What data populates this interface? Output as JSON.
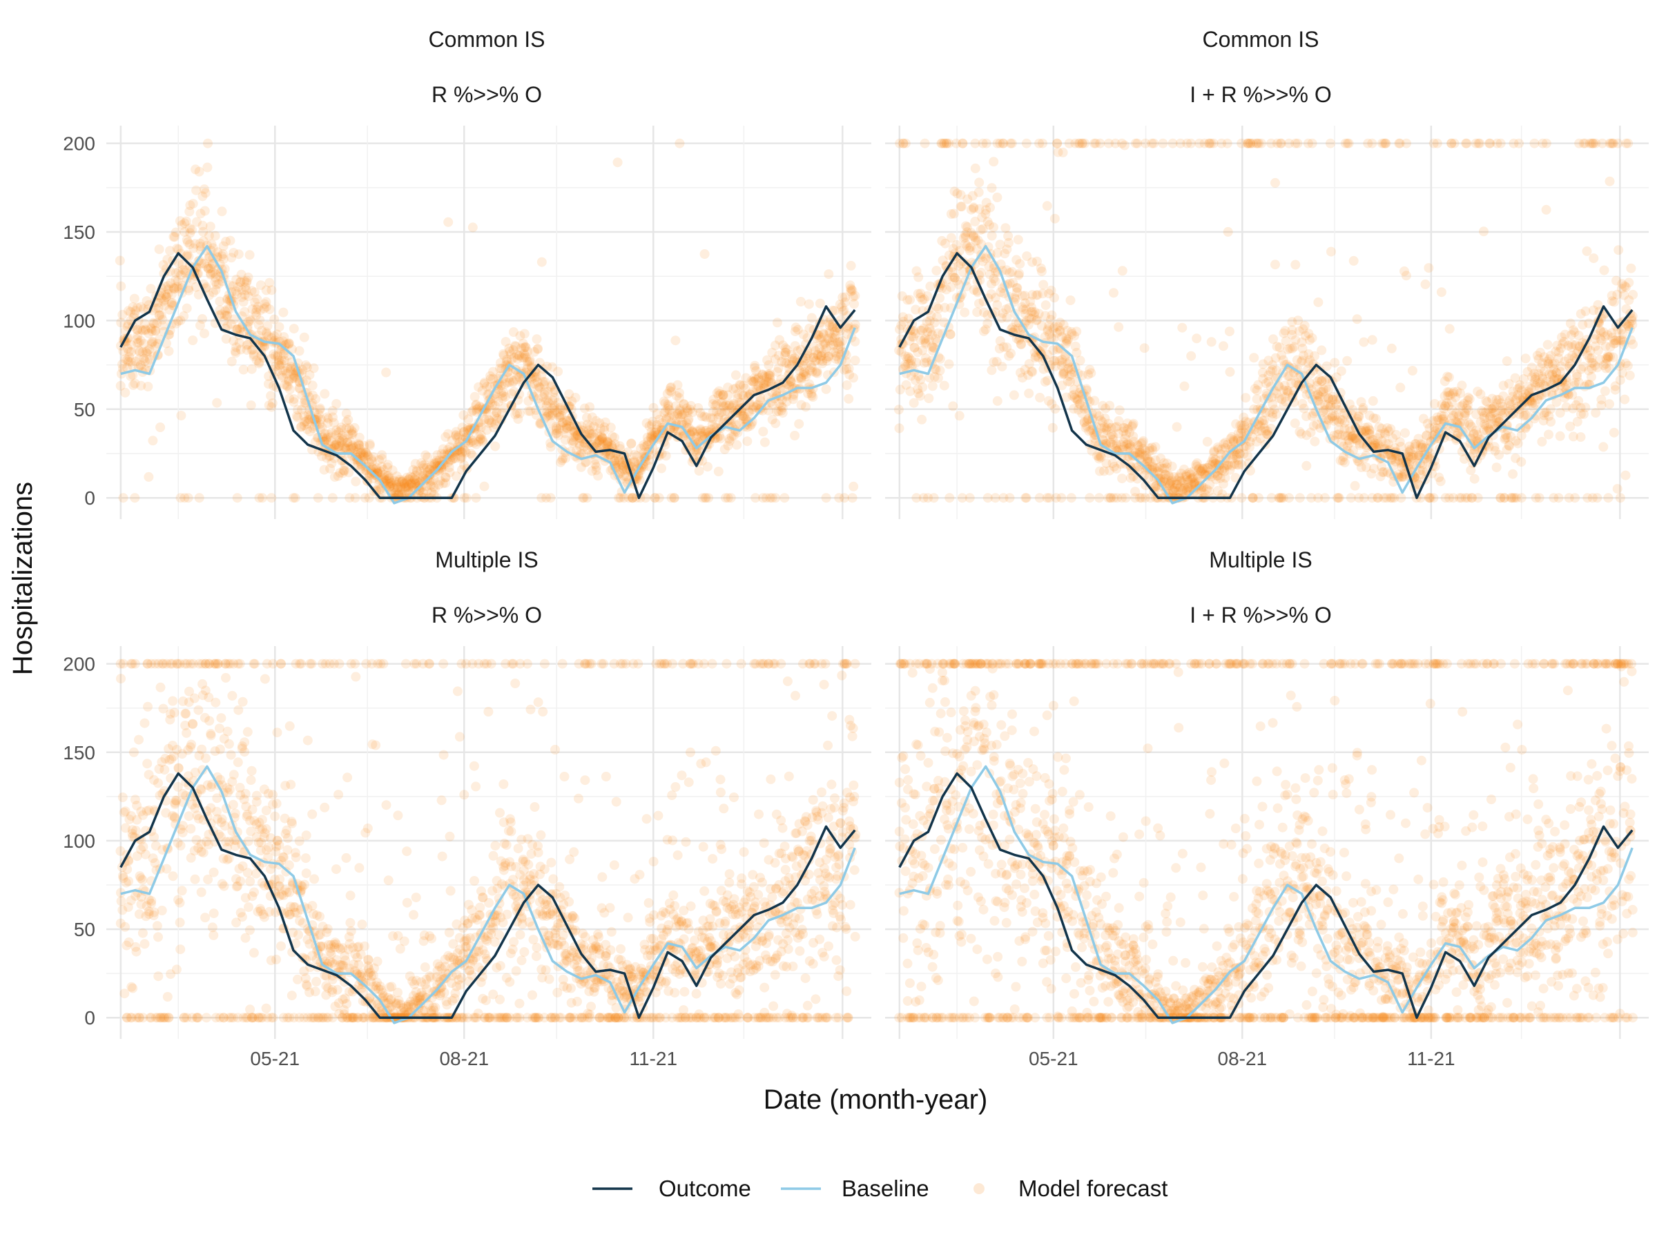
{
  "chart_data": {
    "type": "line",
    "ylabel": "Hospitalizations",
    "xlabel": "Date (month-year)",
    "x_tick_labels": [
      "05-21",
      "08-21",
      "11-21"
    ],
    "y_ticks": [
      0,
      50,
      100,
      150,
      200
    ],
    "ylim": [
      -12,
      210
    ],
    "xlim": [
      "2021-02-08",
      "2022-02-15"
    ],
    "grid": true,
    "legend_position": "bottom",
    "legend": [
      {
        "label": "Outcome",
        "kind": "line",
        "color": "#12344a"
      },
      {
        "label": "Baseline",
        "kind": "line",
        "color": "#8ecae6"
      },
      {
        "label": "Model forecast",
        "kind": "point",
        "color": "#f58518"
      }
    ],
    "outcome": {
      "x": [
        "2021-02-15",
        "2021-02-22",
        "2021-03-01",
        "2021-03-08",
        "2021-03-15",
        "2021-03-22",
        "2021-03-29",
        "2021-04-05",
        "2021-04-12",
        "2021-04-19",
        "2021-04-26",
        "2021-05-03",
        "2021-05-10",
        "2021-05-17",
        "2021-05-24",
        "2021-05-31",
        "2021-06-07",
        "2021-06-14",
        "2021-06-21",
        "2021-06-28",
        "2021-07-05",
        "2021-07-12",
        "2021-07-19",
        "2021-07-26",
        "2021-08-02",
        "2021-08-09",
        "2021-08-16",
        "2021-08-23",
        "2021-08-30",
        "2021-09-06",
        "2021-09-13",
        "2021-09-20",
        "2021-09-27",
        "2021-10-04",
        "2021-10-11",
        "2021-10-18",
        "2021-10-25",
        "2021-11-01",
        "2021-11-08",
        "2021-11-15",
        "2021-11-22",
        "2021-11-29",
        "2021-12-06",
        "2021-12-13",
        "2021-12-20",
        "2021-12-27",
        "2022-01-03",
        "2022-01-10",
        "2022-01-17",
        "2022-01-24",
        "2022-01-31",
        "2022-02-07"
      ],
      "y": [
        85,
        100,
        105,
        125,
        138,
        130,
        112,
        95,
        92,
        90,
        80,
        62,
        38,
        30,
        27,
        24,
        18,
        10,
        0,
        0,
        0,
        0,
        0,
        0,
        15,
        25,
        35,
        50,
        65,
        75,
        68,
        52,
        36,
        26,
        27,
        25,
        0,
        17,
        37,
        32,
        18,
        34,
        42,
        50,
        58,
        61,
        65,
        75,
        90,
        108,
        96,
        106
      ]
    },
    "baseline": {
      "x": [
        "2021-02-15",
        "2021-02-22",
        "2021-03-01",
        "2021-03-08",
        "2021-03-15",
        "2021-03-22",
        "2021-03-29",
        "2021-04-05",
        "2021-04-12",
        "2021-04-19",
        "2021-04-26",
        "2021-05-03",
        "2021-05-10",
        "2021-05-17",
        "2021-05-24",
        "2021-05-31",
        "2021-06-07",
        "2021-06-14",
        "2021-06-21",
        "2021-06-28",
        "2021-07-05",
        "2021-07-12",
        "2021-07-19",
        "2021-07-26",
        "2021-08-02",
        "2021-08-09",
        "2021-08-16",
        "2021-08-23",
        "2021-08-30",
        "2021-09-06",
        "2021-09-13",
        "2021-09-20",
        "2021-09-27",
        "2021-10-04",
        "2021-10-11",
        "2021-10-18",
        "2021-10-25",
        "2021-11-01",
        "2021-11-08",
        "2021-11-15",
        "2021-11-22",
        "2021-11-29",
        "2021-12-06",
        "2021-12-13",
        "2021-12-20",
        "2021-12-27",
        "2022-01-03",
        "2022-01-10",
        "2022-01-17",
        "2022-01-24",
        "2022-01-31",
        "2022-02-07"
      ],
      "y": [
        70,
        72,
        70,
        90,
        110,
        130,
        142,
        128,
        105,
        92,
        88,
        87,
        80,
        55,
        30,
        25,
        25,
        18,
        10,
        -3,
        0,
        8,
        16,
        26,
        32,
        47,
        62,
        75,
        70,
        50,
        32,
        26,
        22,
        24,
        20,
        3,
        17,
        30,
        42,
        40,
        28,
        35,
        40,
        38,
        45,
        55,
        58,
        62,
        62,
        65,
        75,
        96
      ]
    },
    "panels": [
      {
        "title_line1": "Common IS",
        "title_line2": "R %>>% O",
        "forecast_spread": 0.12,
        "outlier_rate": 0.02,
        "zero_rate": 0.06,
        "cap_rate": 0.0
      },
      {
        "title_line1": "Common IS",
        "title_line2": "I + R %>>% O",
        "forecast_spread": 0.15,
        "outlier_rate": 0.06,
        "zero_rate": 0.1,
        "cap_rate": 0.06
      },
      {
        "title_line1": "Multiple IS",
        "title_line2": "R %>>% O",
        "forecast_spread": 0.25,
        "outlier_rate": 0.22,
        "zero_rate": 0.22,
        "cap_rate": 0.05
      },
      {
        "title_line1": "Multiple IS",
        "title_line2": "I + R %>>% O",
        "forecast_spread": 0.3,
        "outlier_rate": 0.28,
        "zero_rate": 0.25,
        "cap_rate": 0.1
      }
    ]
  }
}
